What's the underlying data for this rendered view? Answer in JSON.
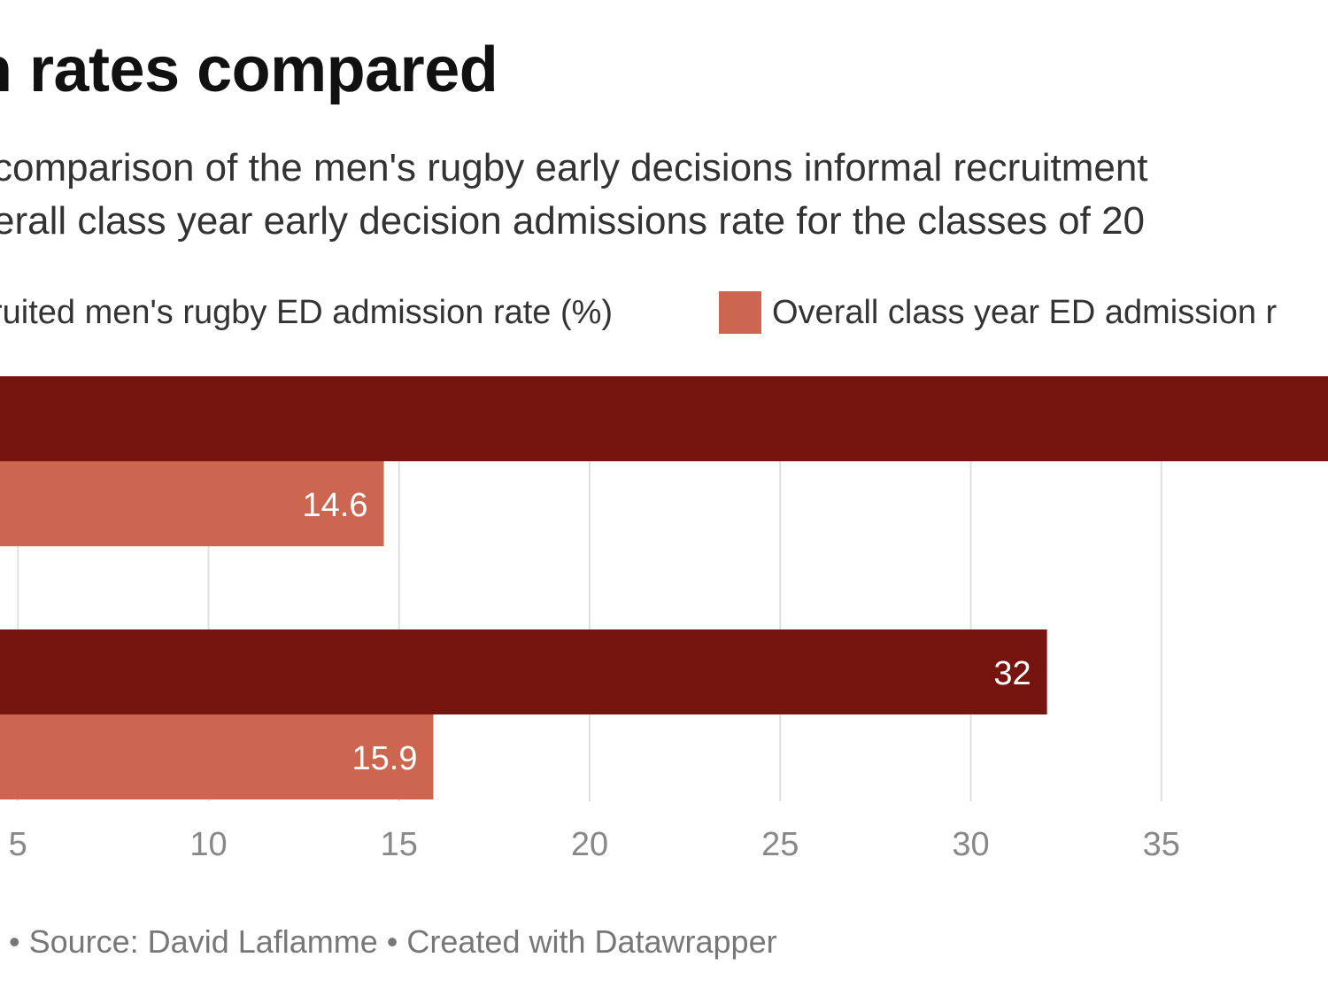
{
  "title": "n rates compared",
  "subtitle_line1": "comparison of the men's rugby early decisions informal recruitment",
  "subtitle_line2": "erall class year early decision admissions rate for the classes of 20",
  "legend": [
    {
      "label": "ruited men's rugby ED admission rate (%)",
      "color": "#761510"
    },
    {
      "label": "Overall class year ED admission r",
      "color": "#cc6651"
    }
  ],
  "footer": "• Source: David Laflamme • Created with Datawrapper",
  "colors": {
    "series1": "#761510",
    "series2": "#cc6651",
    "grid": "#e0e0e0",
    "tick": "#888888"
  },
  "chart_data": {
    "type": "bar",
    "orientation": "horizontal",
    "series": [
      {
        "name": "Recruited men's rugby ED admission rate (%)",
        "values": [
          null,
          32
        ]
      },
      {
        "name": "Overall class year ED admission rate (%)",
        "values": [
          14.6,
          15.9
        ]
      }
    ],
    "data_labels": [
      [
        "",
        "32"
      ],
      [
        "14.6",
        "15.9"
      ]
    ],
    "xticks": [
      5,
      10,
      15,
      20,
      25,
      30,
      35,
      40
    ],
    "xtick_labels": [
      "5",
      "10",
      "15",
      "20",
      "25",
      "30",
      "35",
      ""
    ],
    "xlim": [
      0,
      40
    ],
    "grid": true
  }
}
